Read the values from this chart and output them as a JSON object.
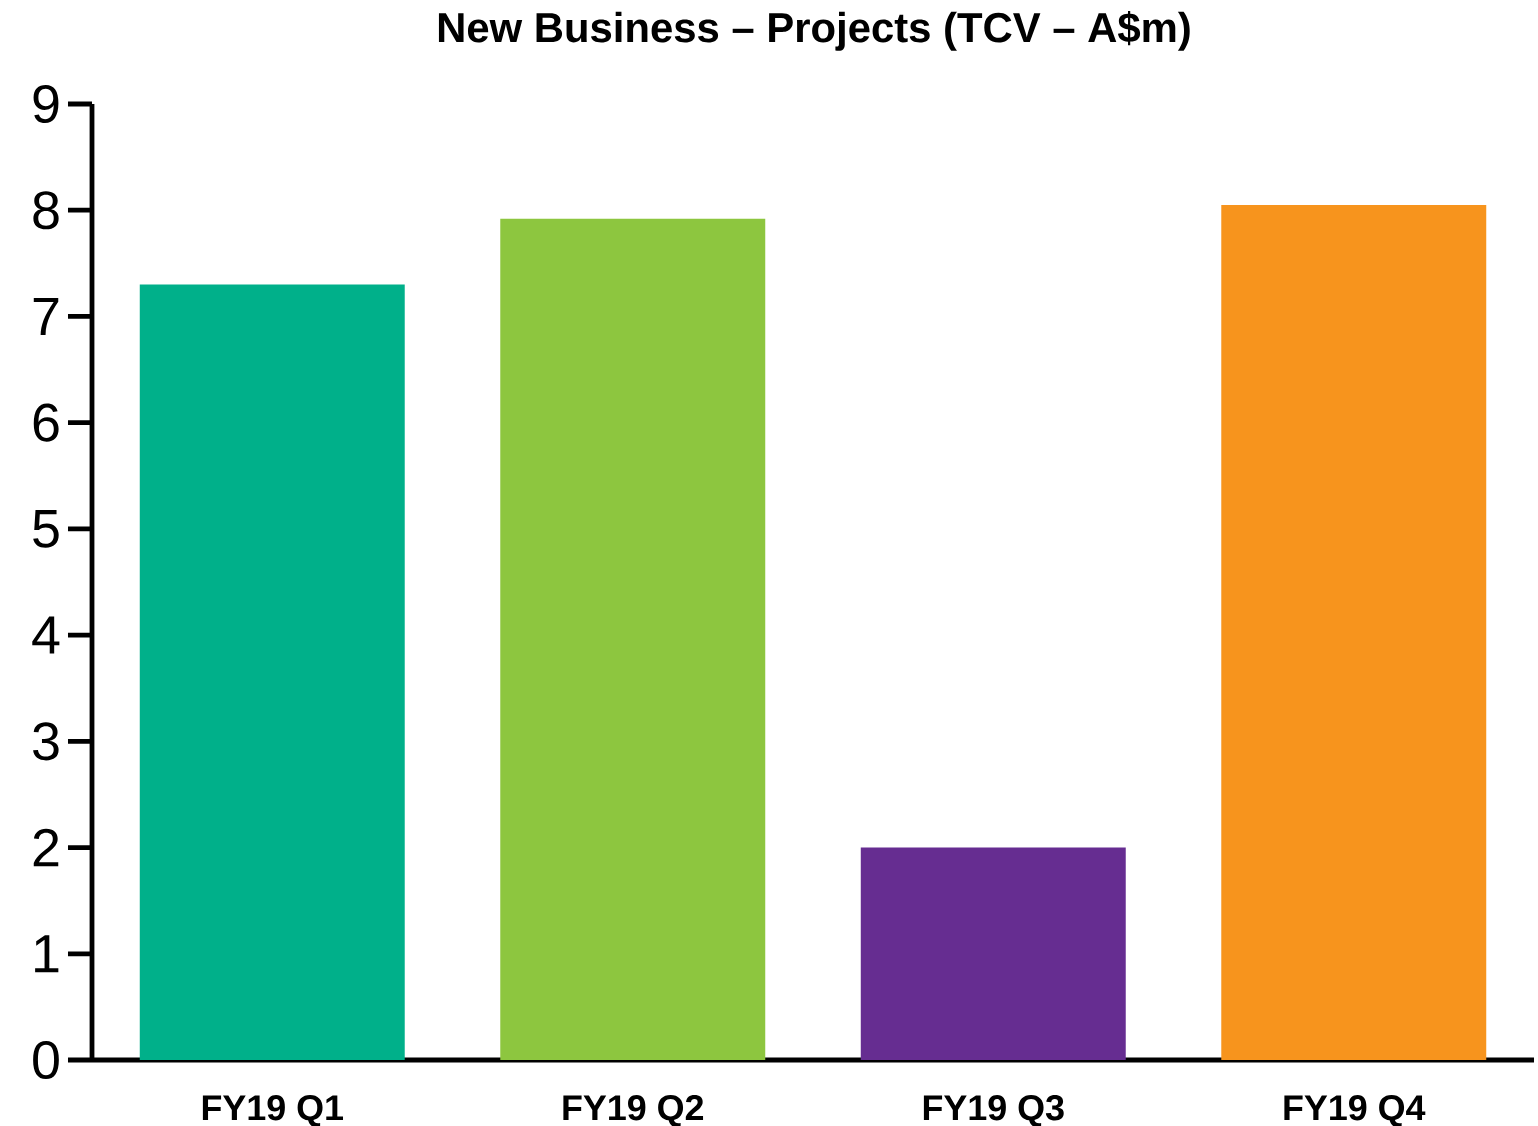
{
  "chart_data": {
    "type": "bar",
    "title": "New Business – Projects (TCV – A$m)",
    "categories": [
      "FY19 Q1",
      "FY19 Q2",
      "FY19 Q3",
      "FY19 Q4"
    ],
    "values": [
      7.3,
      7.92,
      2.0,
      8.05
    ],
    "colors": [
      "#00b08a",
      "#8dc63f",
      "#662d91",
      "#f7941d"
    ],
    "ylim": [
      0,
      9
    ],
    "yticks": [
      0,
      1,
      2,
      3,
      4,
      5,
      6,
      7,
      8,
      9
    ]
  }
}
